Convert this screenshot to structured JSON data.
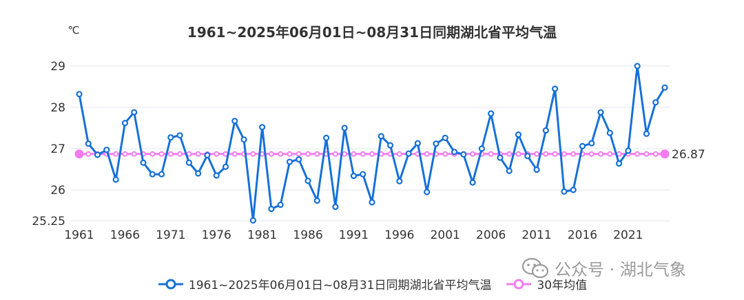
{
  "chart_data": {
    "type": "line",
    "title": "1961~2025年06月01日~08月31日同期湖北省平均气温",
    "yunit": "℃",
    "ylim": [
      25.25,
      29.25
    ],
    "yticks": [
      "29",
      "28",
      "27",
      "26",
      "25.25"
    ],
    "ytick_values": [
      29,
      28,
      27,
      26,
      25.25
    ],
    "xticks": [
      "1961",
      "1966",
      "1971",
      "1976",
      "1981",
      "1986",
      "1991",
      "1996",
      "2001",
      "2006",
      "2011",
      "2016",
      "2021"
    ],
    "x": [
      1961,
      1962,
      1963,
      1964,
      1965,
      1966,
      1967,
      1968,
      1969,
      1970,
      1971,
      1972,
      1973,
      1974,
      1975,
      1976,
      1977,
      1978,
      1979,
      1980,
      1981,
      1982,
      1983,
      1984,
      1985,
      1986,
      1987,
      1988,
      1989,
      1990,
      1991,
      1992,
      1993,
      1994,
      1995,
      1996,
      1997,
      1998,
      1999,
      2000,
      2001,
      2002,
      2003,
      2004,
      2005,
      2006,
      2007,
      2008,
      2009,
      2010,
      2011,
      2012,
      2013,
      2014,
      2015,
      2016,
      2017,
      2018,
      2019,
      2020,
      2021,
      2022,
      2023,
      2024,
      2025
    ],
    "series": [
      {
        "name": "1961~2025年06月01日~08月31日同期湖北省平均气温",
        "color": "#1670d8",
        "values": [
          28.32,
          27.12,
          26.85,
          26.97,
          26.25,
          27.62,
          27.88,
          26.66,
          26.38,
          26.38,
          27.27,
          27.32,
          26.66,
          26.4,
          26.84,
          26.35,
          26.56,
          27.67,
          27.22,
          25.26,
          27.52,
          25.54,
          25.64,
          26.68,
          26.74,
          26.22,
          25.74,
          27.26,
          25.59,
          27.5,
          26.34,
          26.38,
          25.7,
          27.3,
          27.08,
          26.21,
          26.88,
          27.13,
          25.95,
          27.12,
          27.26,
          26.92,
          26.86,
          26.18,
          27.0,
          27.85,
          26.78,
          26.46,
          27.34,
          26.82,
          26.49,
          27.44,
          28.45,
          25.96,
          26.0,
          27.06,
          27.13,
          27.88,
          27.38,
          26.64,
          26.95,
          29.0,
          27.36,
          28.12,
          28.48
        ]
      },
      {
        "name": "30年均值",
        "color": "#f47bf0",
        "value": 26.87,
        "label": "26.87"
      }
    ],
    "grid": true,
    "legend_position": "bottom-center"
  },
  "watermark": {
    "text": "公众号 · 湖北气象",
    "icon": "wechat-icon",
    "color": "#9a9a9a"
  },
  "legend": {
    "items": [
      {
        "label": "1961~2025年06月01日~08月31日同期湖北省平均气温",
        "color": "#1670d8"
      },
      {
        "label": "30年均值",
        "color": "#f47bf0"
      }
    ]
  }
}
